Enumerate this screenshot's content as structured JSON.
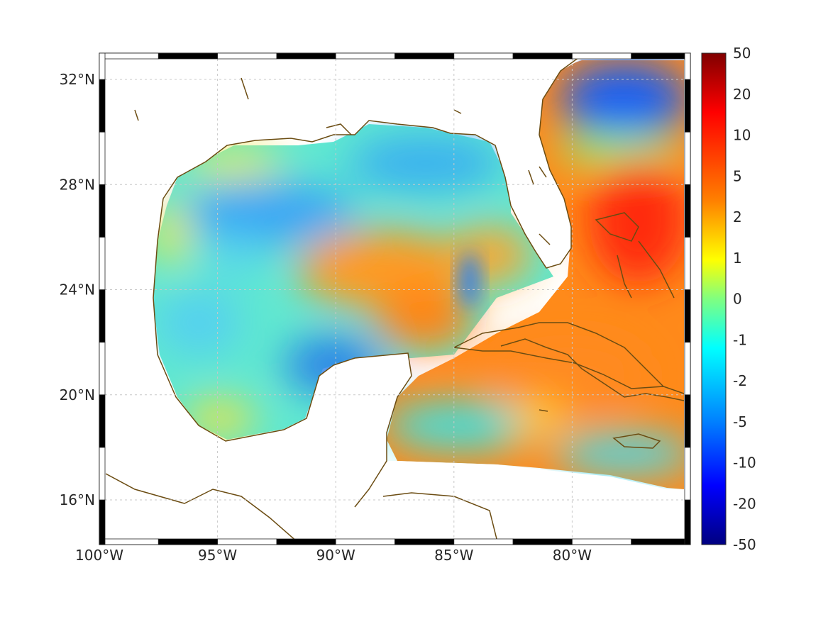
{
  "map": {
    "lon_range": [
      -100,
      -75
    ],
    "lat_range": [
      14.3,
      33
    ],
    "lat_labels": [
      {
        "value": 32,
        "label": "32°N"
      },
      {
        "value": 28,
        "label": "28°N"
      },
      {
        "value": 24,
        "label": "24°N"
      },
      {
        "value": 20,
        "label": "20°N"
      },
      {
        "value": 16,
        "label": "16°N"
      }
    ],
    "lon_labels": [
      {
        "value": -100,
        "label": "100°W"
      },
      {
        "value": -95,
        "label": "95°W"
      },
      {
        "value": -90,
        "label": "90°W"
      },
      {
        "value": -85,
        "label": "85°W"
      },
      {
        "value": -80,
        "label": "80°W"
      }
    ],
    "grid": true,
    "coastline_color": "#6b4c12",
    "land_color": "#ffffff"
  },
  "colorbar": {
    "ticks": [
      "50",
      "20",
      "10",
      "5",
      "2",
      "1",
      "0",
      "-1",
      "-2",
      "-5",
      "-10",
      "-20",
      "-50"
    ],
    "colors": [
      "#800000",
      "#ff0000",
      "#ff8000",
      "#ffff00",
      "#80ff80",
      "#00ffff",
      "#0080ff",
      "#0000ff",
      "#000080"
    ]
  }
}
